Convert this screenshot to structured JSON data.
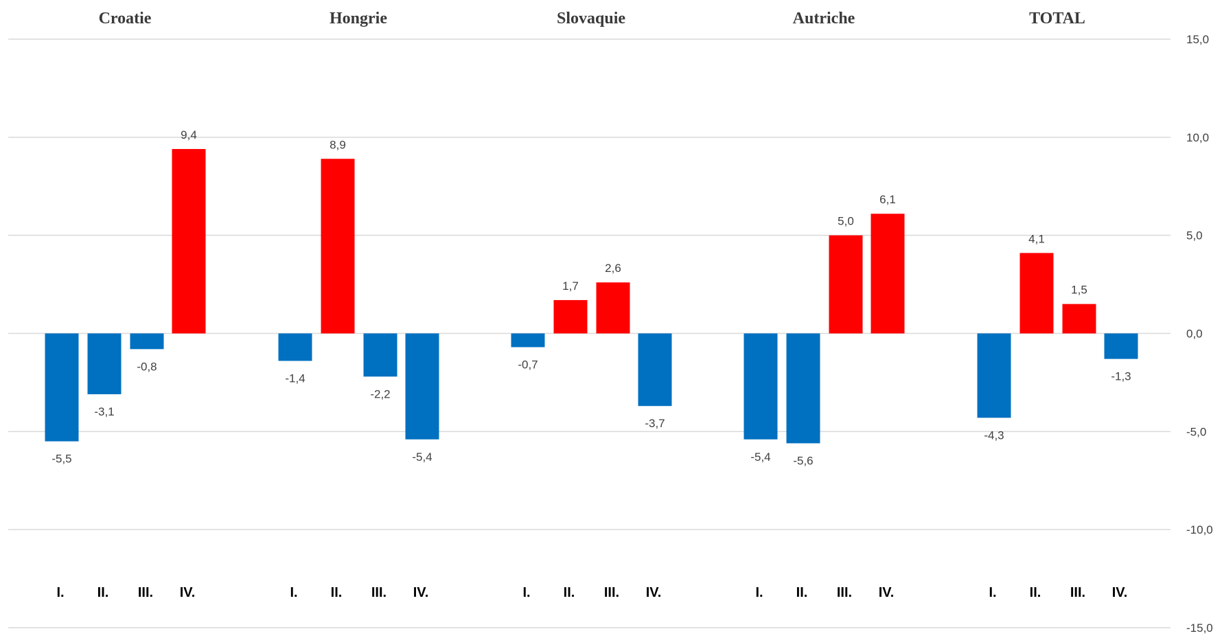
{
  "chart_data": {
    "type": "bar",
    "groups": [
      "Croatie",
      "Hongrie",
      "Slovaquie",
      "Autriche",
      "TOTAL"
    ],
    "quarters": [
      "I.",
      "II.",
      "III.",
      "IV."
    ],
    "values": [
      [
        -5.5,
        -3.1,
        -0.8,
        9.4
      ],
      [
        -1.4,
        8.9,
        -2.2,
        -5.4
      ],
      [
        -0.7,
        1.7,
        2.6,
        -3.7
      ],
      [
        -5.4,
        -5.6,
        5.0,
        6.1
      ],
      [
        -4.3,
        4.1,
        1.5,
        -1.3
      ]
    ],
    "value_labels": [
      [
        "-5,5",
        "-3,1",
        "-0,8",
        "9,4"
      ],
      [
        "-1,4",
        "8,9",
        "-2,2",
        "-5,4"
      ],
      [
        "-0,7",
        "1,7",
        "2,6",
        "-3,7"
      ],
      [
        "-5,4",
        "-5,6",
        "5,0",
        "6,1"
      ],
      [
        "-4,3",
        "4,1",
        "1,5",
        "-1,3"
      ]
    ],
    "ylim": [
      -15,
      15
    ],
    "yticks": [
      15,
      10,
      5,
      0,
      -5,
      -10,
      -15
    ],
    "ytick_labels": [
      "15,0",
      "10,0",
      "5,0",
      "0,0",
      "-5,0",
      "-10,0",
      "-15,0"
    ],
    "y_axis_position": "right",
    "grid": true,
    "colors": {
      "positive": "#ff0000",
      "negative": "#0070c0",
      "grid": "#d9d9d9"
    }
  }
}
